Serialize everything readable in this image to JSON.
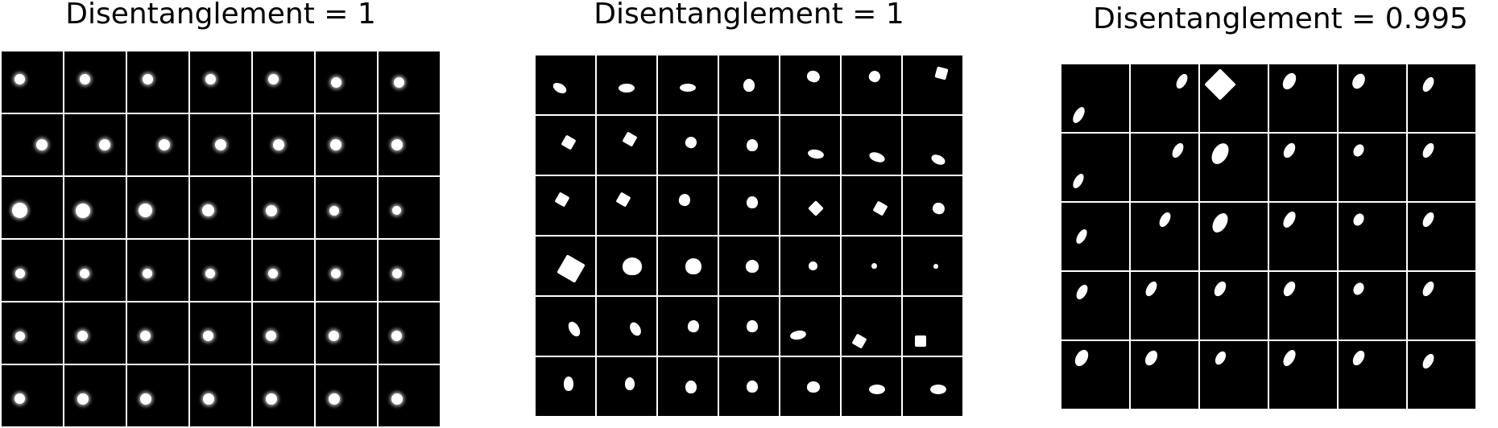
{
  "panels": [
    {
      "title": "Disentanglement = 1"
    },
    {
      "title": "Disentanglement = 1"
    },
    {
      "title": "Disentanglement = 0.995"
    }
  ]
}
